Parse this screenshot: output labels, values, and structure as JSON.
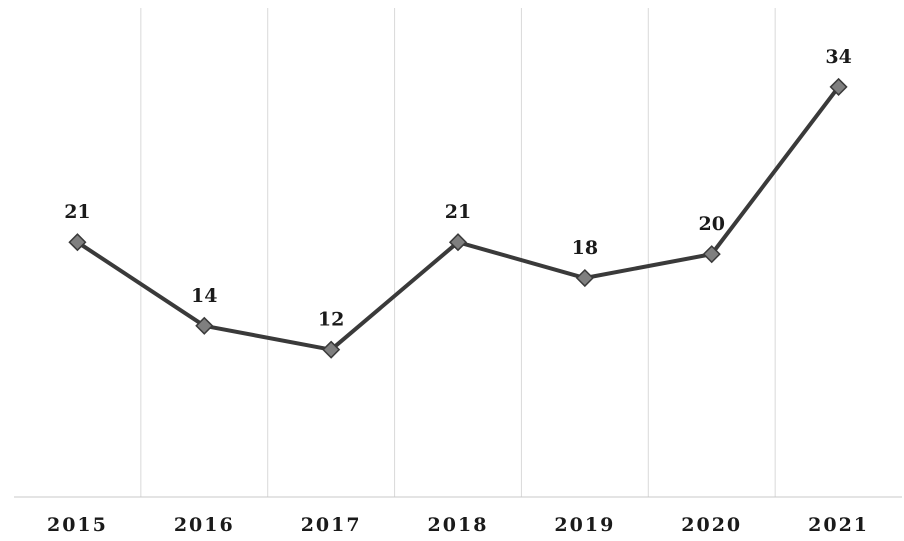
{
  "chart_data": {
    "type": "line",
    "categories": [
      "2015",
      "2016",
      "2017",
      "2018",
      "2019",
      "2020",
      "2021"
    ],
    "series": [
      {
        "values": [
          21,
          14,
          12,
          21,
          18,
          20,
          34
        ],
        "data_labels": [
          "21",
          "14",
          "12",
          "21",
          "18",
          "20",
          "34"
        ],
        "color": "#3a3a3a",
        "marker": "diamond",
        "marker_color": "#7f7f7f"
      }
    ],
    "title": "",
    "xlabel": "",
    "ylabel": "",
    "ylim": [
      0,
      40
    ],
    "grid": "vertical",
    "legend": "none",
    "gridline_color": "#d9d9d9",
    "axis_color": "#c8c8c8"
  }
}
